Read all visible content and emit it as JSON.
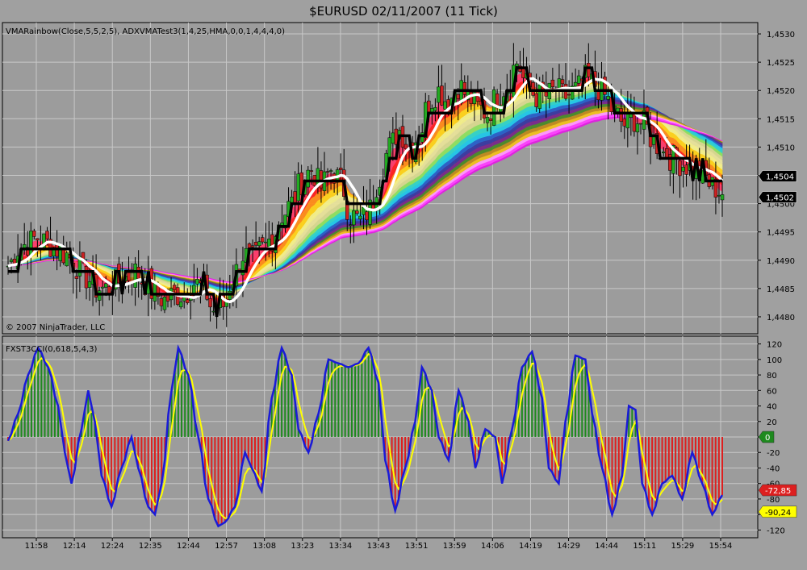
{
  "window": {
    "title": "$EURUSD  02/11/2007  (11 Tick)"
  },
  "colors": {
    "background": "#a0a0a0",
    "plot_background": "#9c9c9c",
    "grid": "#c8c8c8",
    "up_candle": "#22aa22",
    "down_candle": "#cc2222",
    "hma_line": "#000000",
    "sma_line": "#ffffff",
    "histogram_positive": "#1e8a1e",
    "histogram_negative": "#dd1f1f",
    "cci_line": "#1a1ad8",
    "signal_line": "#ffff00"
  },
  "chart_data": [
    {
      "type": "candlestick",
      "panel": "price",
      "indicator_label": "VMARainbow(Close,5,5,2,5),  ADXVMATest3(1,4,25,HMA,0,0,1,4,4,4,0)",
      "copyright": "© 2007 NinjaTrader, LLC",
      "ylim": [
        1.4477,
        1.4532
      ],
      "y_ticks": [
        "1,4530",
        "1,4525",
        "1,4520",
        "1,4515",
        "1,4510",
        "1,4505",
        "1,4500",
        "1,4495",
        "1,4490",
        "1,4485",
        "1,4480"
      ],
      "y_tick_values": [
        1.453,
        1.4525,
        1.452,
        1.4515,
        1.451,
        1.4505,
        1.45,
        1.4495,
        1.449,
        1.4485,
        1.448
      ],
      "price_markers": [
        {
          "label": "1,4504",
          "value": 1.4504,
          "bg": "#000000",
          "fg": "#ffffff"
        },
        {
          "label": "1,4502",
          "value": 1.4502,
          "bg": "#000000",
          "fg": "#ffffff"
        }
      ],
      "close_anchors": [
        [
          0,
          1.4489
        ],
        [
          3,
          1.4492
        ],
        [
          6,
          1.4493
        ],
        [
          9,
          1.4494
        ],
        [
          12,
          1.4493
        ],
        [
          15,
          1.4492
        ],
        [
          18,
          1.4491
        ],
        [
          21,
          1.4489
        ],
        [
          24,
          1.4487
        ],
        [
          27,
          1.4485
        ],
        [
          30,
          1.4485
        ],
        [
          33,
          1.4486
        ],
        [
          36,
          1.4487
        ],
        [
          39,
          1.4488
        ],
        [
          42,
          1.4486
        ],
        [
          45,
          1.4484
        ],
        [
          48,
          1.4483
        ],
        [
          51,
          1.4484
        ],
        [
          54,
          1.4484
        ],
        [
          57,
          1.4486
        ],
        [
          60,
          1.4485
        ],
        [
          63,
          1.4481
        ],
        [
          66,
          1.4482
        ],
        [
          69,
          1.4487
        ],
        [
          72,
          1.4491
        ],
        [
          75,
          1.449
        ],
        [
          78,
          1.4492
        ],
        [
          81,
          1.4494
        ],
        [
          84,
          1.4498
        ],
        [
          87,
          1.45
        ],
        [
          90,
          1.4504
        ],
        [
          93,
          1.4506
        ],
        [
          96,
          1.4503
        ],
        [
          99,
          1.4506
        ],
        [
          102,
          1.4504
        ],
        [
          105,
          1.4498
        ],
        [
          108,
          1.4497
        ],
        [
          111,
          1.4499
        ],
        [
          114,
          1.4505
        ],
        [
          117,
          1.451
        ],
        [
          120,
          1.4513
        ],
        [
          123,
          1.451
        ],
        [
          126,
          1.4512
        ],
        [
          129,
          1.4518
        ],
        [
          132,
          1.452
        ],
        [
          135,
          1.4518
        ],
        [
          138,
          1.4521
        ],
        [
          141,
          1.4519
        ],
        [
          144,
          1.4517
        ],
        [
          147,
          1.4516
        ],
        [
          150,
          1.4519
        ],
        [
          153,
          1.4521
        ],
        [
          156,
          1.4525
        ],
        [
          159,
          1.4521
        ],
        [
          162,
          1.4519
        ],
        [
          165,
          1.4519
        ],
        [
          168,
          1.452
        ],
        [
          171,
          1.4519
        ],
        [
          174,
          1.452
        ],
        [
          177,
          1.4522
        ],
        [
          180,
          1.4521
        ],
        [
          183,
          1.4519
        ],
        [
          186,
          1.4516
        ],
        [
          189,
          1.4514
        ],
        [
          192,
          1.4515
        ],
        [
          195,
          1.4514
        ],
        [
          198,
          1.4511
        ],
        [
          201,
          1.4509
        ],
        [
          204,
          1.4508
        ],
        [
          207,
          1.4507
        ],
        [
          210,
          1.4506
        ],
        [
          213,
          1.4505
        ],
        [
          216,
          1.4503
        ],
        [
          219,
          1.4502
        ]
      ],
      "bar_count": 220
    },
    {
      "type": "histogram+line",
      "panel": "oscillator",
      "indicator_label": "FXST3CCI(0,618,5,4,3)",
      "ylim": [
        -130,
        130
      ],
      "y_ticks": [
        "120",
        "100",
        "80",
        "60",
        "40",
        "20",
        "0",
        "-20",
        "-40",
        "-60",
        "-80",
        "-100",
        "-120"
      ],
      "y_tick_values": [
        120,
        100,
        80,
        60,
        40,
        20,
        0,
        -20,
        -40,
        -60,
        -80,
        -100,
        -120
      ],
      "value_markers": [
        {
          "label": "0",
          "value": 0,
          "bg": "#1e8a1e",
          "fg": "#ffffff"
        },
        {
          "label": "-72,85",
          "value": -72.85,
          "bg": "#dd1f1f",
          "fg": "#ffffff"
        },
        {
          "label": "-90,24",
          "value": -90.24,
          "bg": "#ffff00",
          "fg": "#000000"
        }
      ],
      "cci_anchors": [
        [
          0,
          -5
        ],
        [
          3,
          30
        ],
        [
          6,
          80
        ],
        [
          9,
          115
        ],
        [
          12,
          90
        ],
        [
          15,
          40
        ],
        [
          17,
          -20
        ],
        [
          19,
          -60
        ],
        [
          22,
          10
        ],
        [
          24,
          60
        ],
        [
          26,
          20
        ],
        [
          28,
          -50
        ],
        [
          31,
          -90
        ],
        [
          34,
          -40
        ],
        [
          37,
          0
        ],
        [
          39,
          -40
        ],
        [
          42,
          -90
        ],
        [
          44,
          -100
        ],
        [
          46,
          -60
        ],
        [
          49,
          60
        ],
        [
          51,
          115
        ],
        [
          54,
          80
        ],
        [
          57,
          0
        ],
        [
          60,
          -80
        ],
        [
          63,
          -115
        ],
        [
          65,
          -110
        ],
        [
          68,
          -90
        ],
        [
          71,
          -20
        ],
        [
          73,
          -40
        ],
        [
          76,
          -70
        ],
        [
          79,
          50
        ],
        [
          82,
          115
        ],
        [
          85,
          80
        ],
        [
          87,
          10
        ],
        [
          90,
          -20
        ],
        [
          93,
          30
        ],
        [
          96,
          100
        ],
        [
          99,
          95
        ],
        [
          102,
          90
        ],
        [
          105,
          95
        ],
        [
          108,
          115
        ],
        [
          111,
          70
        ],
        [
          113,
          -30
        ],
        [
          116,
          -95
        ],
        [
          119,
          -40
        ],
        [
          122,
          20
        ],
        [
          124,
          90
        ],
        [
          127,
          60
        ],
        [
          129,
          0
        ],
        [
          132,
          -30
        ],
        [
          135,
          60
        ],
        [
          138,
          20
        ],
        [
          140,
          -40
        ],
        [
          143,
          10
        ],
        [
          146,
          0
        ],
        [
          148,
          -60
        ],
        [
          151,
          10
        ],
        [
          154,
          90
        ],
        [
          157,
          110
        ],
        [
          160,
          50
        ],
        [
          162,
          -40
        ],
        [
          165,
          -60
        ],
        [
          167,
          20
        ],
        [
          170,
          105
        ],
        [
          173,
          100
        ],
        [
          175,
          30
        ],
        [
          178,
          -40
        ],
        [
          181,
          -100
        ],
        [
          184,
          -50
        ],
        [
          186,
          40
        ],
        [
          188,
          35
        ],
        [
          190,
          -60
        ],
        [
          193,
          -100
        ],
        [
          196,
          -60
        ],
        [
          199,
          -50
        ],
        [
          202,
          -80
        ],
        [
          205,
          -20
        ],
        [
          208,
          -60
        ],
        [
          211,
          -100
        ],
        [
          214,
          -75
        ]
      ],
      "bar_count": 215
    }
  ],
  "x_axis": {
    "tick_labels": [
      "11:58",
      "12:14",
      "12:24",
      "12:35",
      "12:44",
      "12:57",
      "13:08",
      "13:23",
      "13:34",
      "13:43",
      "13:51",
      "13:59",
      "14:06",
      "14:19",
      "14:29",
      "14:44",
      "15:11",
      "15:29",
      "15:54"
    ]
  }
}
